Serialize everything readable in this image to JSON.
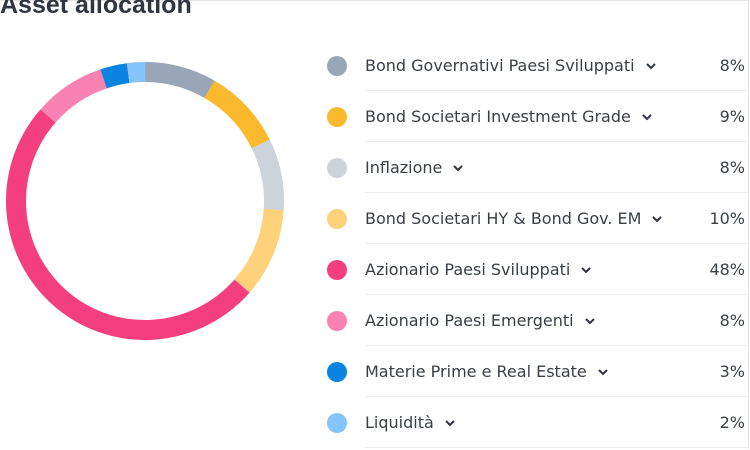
{
  "chart_data": {
    "type": "pie",
    "title": "Asset allocation",
    "categories": [
      "Bond Governativi Paesi Sviluppati",
      "Bond Societari Investment Grade",
      "Inflazione",
      "Bond Societari HY & Bond Gov. EM",
      "Azionario Paesi Sviluppati",
      "Azionario Paesi Emergenti",
      "Materie Prime e Real Estate",
      "Liquidità"
    ],
    "values": [
      8,
      9,
      8,
      10,
      48,
      8,
      3,
      2
    ],
    "labels": [
      "8%",
      "9%",
      "8%",
      "10%",
      "48%",
      "8%",
      "3%",
      "2%"
    ],
    "colors": [
      "#98a6b8",
      "#fbb92e",
      "#cdd3db",
      "#fdd27a",
      "#f43f7f",
      "#f982b2",
      "#0a84e0",
      "#86c5fb"
    ],
    "legend": "right"
  }
}
